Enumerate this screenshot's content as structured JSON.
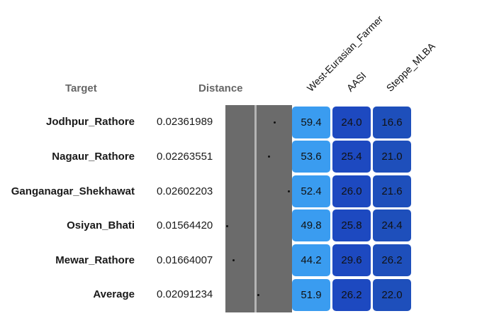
{
  "headers": {
    "target": "Target",
    "distance": "Distance",
    "components": [
      "West-Eurasian_Farmer",
      "AASI",
      "Steppe_MLBA"
    ]
  },
  "colors": {
    "West-Eurasian_Farmer": "#3a9cf0",
    "AASI": "#1d49c0",
    "Steppe_MLBA": "#1e4fbb",
    "panel": "#6b6b6b"
  },
  "rows": [
    {
      "label": "Jodhpur_Rathore",
      "distance": "0.02361989",
      "values": [
        "59.4",
        "24.0",
        "16.6"
      ]
    },
    {
      "label": "Nagaur_Rathore",
      "distance": "0.02263551",
      "values": [
        "53.6",
        "25.4",
        "21.0"
      ]
    },
    {
      "label": "Ganganagar_Shekhawat",
      "distance": "0.02602203",
      "values": [
        "52.4",
        "26.0",
        "21.6"
      ]
    },
    {
      "label": "Osiyan_Bhati",
      "distance": "0.01564420",
      "values": [
        "49.8",
        "25.8",
        "24.4"
      ]
    },
    {
      "label": "Mewar_Rathore",
      "distance": "0.01664007",
      "values": [
        "44.2",
        "29.6",
        "26.2"
      ]
    },
    {
      "label": "Average",
      "distance": "0.02091234",
      "values": [
        "51.9",
        "26.2",
        "22.0"
      ]
    }
  ],
  "chart_data": {
    "type": "table",
    "title": "",
    "columns": [
      "Target",
      "Distance",
      "West-Eurasian_Farmer",
      "AASI",
      "Steppe_MLBA"
    ],
    "distance_scale": {
      "min": 0.0156,
      "max": 0.0269
    },
    "categories": [
      "Jodhpur_Rathore",
      "Nagaur_Rathore",
      "Ganganagar_Shekhawat",
      "Osiyan_Bhati",
      "Mewar_Rathore",
      "Average"
    ],
    "distance_values": [
      0.02361989,
      0.02263551,
      0.02602203,
      0.0156442,
      0.01664007,
      0.02091234
    ],
    "series": [
      {
        "name": "West-Eurasian_Farmer",
        "values": [
          59.4,
          53.6,
          52.4,
          49.8,
          44.2,
          51.9
        ]
      },
      {
        "name": "AASI",
        "values": [
          24.0,
          25.4,
          26.0,
          25.8,
          29.6,
          26.2
        ]
      },
      {
        "name": "Steppe_MLBA",
        "values": [
          16.6,
          21.0,
          21.6,
          24.4,
          26.2,
          22.0
        ]
      }
    ]
  }
}
